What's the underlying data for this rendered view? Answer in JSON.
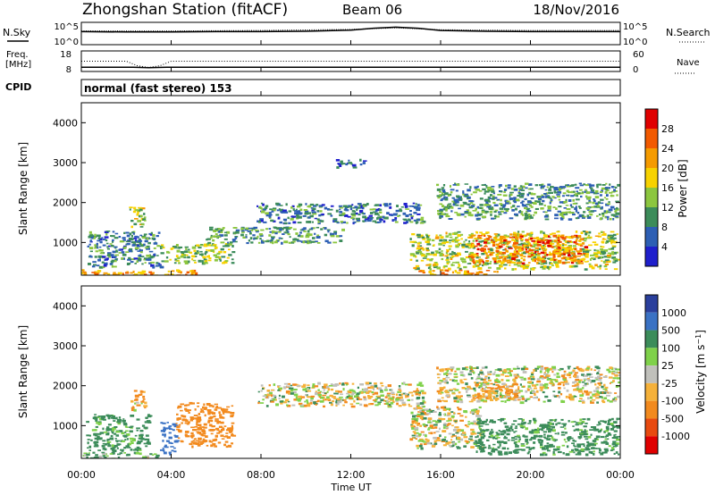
{
  "header": {
    "station": "Zhongshan Station (fitACF)",
    "beam": "Beam 06",
    "date": "18/Nov/2016"
  },
  "strips": {
    "nsky_label": "N.Sky",
    "nsky_ticks": [
      "10^5",
      "10^0"
    ],
    "nsearch_label": "N.Search",
    "nsearch_ticks": [
      "10^5",
      "10^0"
    ],
    "freq_label_1": "Freq.",
    "freq_label_2": "[MHz]",
    "freq_ticks": [
      "18",
      "8"
    ],
    "nave_label": "Nave",
    "nave_ticks": [
      "60",
      "0"
    ],
    "cpid_label": "CPID",
    "cpid_text": "normal (fast stereo) 153"
  },
  "axes": {
    "ylabel": "Slant Range [km]",
    "yticks": [
      "4000",
      "3000",
      "2000",
      "1000"
    ],
    "xlabel": "Time UT",
    "xticks": [
      "00:00",
      "04:00",
      "08:00",
      "12:00",
      "16:00",
      "20:00",
      "00:00"
    ]
  },
  "power_colorbar": {
    "label": "Power [dB]",
    "ticks": [
      "28",
      "24",
      "20",
      "16",
      "12",
      "8",
      "4"
    ],
    "colors": [
      "#e00000",
      "#f25a00",
      "#f59b00",
      "#f7d200",
      "#8cc63f",
      "#3c8c5a",
      "#2d5fb4",
      "#1f1fcc"
    ]
  },
  "velocity_colorbar": {
    "label": "Velocity [m s^-1]",
    "ticks": [
      "1000",
      "500",
      "100",
      "25",
      "-25",
      "-100",
      "-500",
      "-1000"
    ],
    "colors": [
      "#2a3f9c",
      "#3a72c4",
      "#3c8c5a",
      "#7fd14a",
      "#c0c0bb",
      "#f5b13a",
      "#f28a1e",
      "#e84a10",
      "#e00000"
    ]
  },
  "chart_data": [
    {
      "type": "heatmap",
      "title": "Power",
      "xlabel": "Time UT",
      "ylabel": "Slant Range [km]",
      "x_range": [
        "00:00",
        "24:00"
      ],
      "ylim": [
        180,
        4500
      ],
      "color_scale": [
        3,
        30
      ],
      "regions": [
        {
          "t": [
            0.0,
            5.3
          ],
          "range": [
            190,
            330
          ],
          "value": 22
        },
        {
          "t": [
            0.2,
            3.5
          ],
          "range": [
            400,
            1300
          ],
          "value": 9
        },
        {
          "t": [
            2.1,
            2.8
          ],
          "range": [
            1400,
            1900
          ],
          "value": 15
        },
        {
          "t": [
            3.5,
            6.7
          ],
          "range": [
            500,
            1000
          ],
          "value": 14
        },
        {
          "t": [
            5.5,
            11.6
          ],
          "range": [
            1000,
            1400
          ],
          "value": 10
        },
        {
          "t": [
            7.8,
            15.2
          ],
          "range": [
            1500,
            2000
          ],
          "value": 8
        },
        {
          "t": [
            11.3,
            12.6
          ],
          "range": [
            2900,
            3100
          ],
          "value": 6
        },
        {
          "t": [
            14.6,
            23.9
          ],
          "range": [
            350,
            1300
          ],
          "value": 15
        },
        {
          "t": [
            17.2,
            22.4
          ],
          "range": [
            500,
            1200
          ],
          "value": 24
        },
        {
          "t": [
            15.8,
            23.9
          ],
          "range": [
            1600,
            2500
          ],
          "value": 10
        },
        {
          "t": [
            15.0,
            18.5
          ],
          "range": [
            190,
            330
          ],
          "value": 22
        }
      ]
    },
    {
      "type": "heatmap",
      "title": "Velocity",
      "xlabel": "Time UT",
      "ylabel": "Slant Range [km]",
      "x_range": [
        "00:00",
        "24:00"
      ],
      "ylim": [
        180,
        4500
      ],
      "color_scale": [
        -1000,
        1000
      ],
      "regions": [
        {
          "t": [
            0.0,
            3.5
          ],
          "range": [
            190,
            350
          ],
          "value": 100
        },
        {
          "t": [
            0.2,
            3.0
          ],
          "range": [
            400,
            1300
          ],
          "value": 200
        },
        {
          "t": [
            2.1,
            2.8
          ],
          "range": [
            1400,
            1900
          ],
          "value": -100
        },
        {
          "t": [
            3.5,
            4.2
          ],
          "range": [
            300,
            1100
          ],
          "value": 700
        },
        {
          "t": [
            4.2,
            6.7
          ],
          "range": [
            500,
            1600
          ],
          "value": -300
        },
        {
          "t": [
            7.8,
            15.2
          ],
          "range": [
            1500,
            2100
          ],
          "value": 0
        },
        {
          "t": [
            14.6,
            17.8
          ],
          "range": [
            450,
            1500
          ],
          "value": 0
        },
        {
          "t": [
            17.5,
            23.9
          ],
          "range": [
            300,
            1200
          ],
          "value": 200
        },
        {
          "t": [
            15.8,
            23.9
          ],
          "range": [
            1600,
            2500
          ],
          "value": 0
        },
        {
          "t": [
            17.5,
            19.5
          ],
          "range": [
            1700,
            2100
          ],
          "value": -150
        }
      ]
    },
    {
      "type": "line",
      "title": "N.Sky / N.Search",
      "x_range": [
        "00:00",
        "24:00"
      ],
      "yscale": "log",
      "ylim": [
        "10^0",
        "10^5"
      ],
      "series": [
        {
          "name": "N.Sky",
          "x": [
            0,
            2,
            4,
            6,
            8,
            10,
            12,
            13,
            14,
            15,
            16,
            18,
            20,
            22,
            24
          ],
          "values": [
            3.0,
            2.9,
            2.9,
            3.0,
            3.0,
            3.1,
            3.4,
            3.9,
            4.2,
            3.9,
            3.3,
            3.1,
            3.0,
            3.0,
            3.0
          ]
        },
        {
          "name": "N.Search",
          "x": [
            0,
            4,
            8,
            12,
            14,
            16,
            20,
            24
          ],
          "values": [
            3.2,
            3.2,
            3.3,
            3.6,
            4.0,
            3.5,
            3.3,
            3.3
          ]
        }
      ]
    },
    {
      "type": "scatter",
      "title": "Freq. [MHz] / Nave",
      "x_range": [
        "00:00",
        "24:00"
      ],
      "ylim_freq": [
        8,
        18
      ],
      "ylim_nave": [
        0,
        60
      ],
      "series": [
        {
          "name": "Freq.",
          "x": [
            0,
            2.3,
            3.0,
            3.8,
            4.0,
            24
          ],
          "values": [
            9.5,
            9.5,
            9.2,
            9.5,
            9.5,
            9.5
          ]
        },
        {
          "name": "Nave",
          "x": [
            0,
            2,
            2.5,
            3,
            3.5,
            4,
            24
          ],
          "values": [
            30,
            30,
            14,
            8,
            14,
            30,
            30
          ]
        }
      ]
    }
  ]
}
